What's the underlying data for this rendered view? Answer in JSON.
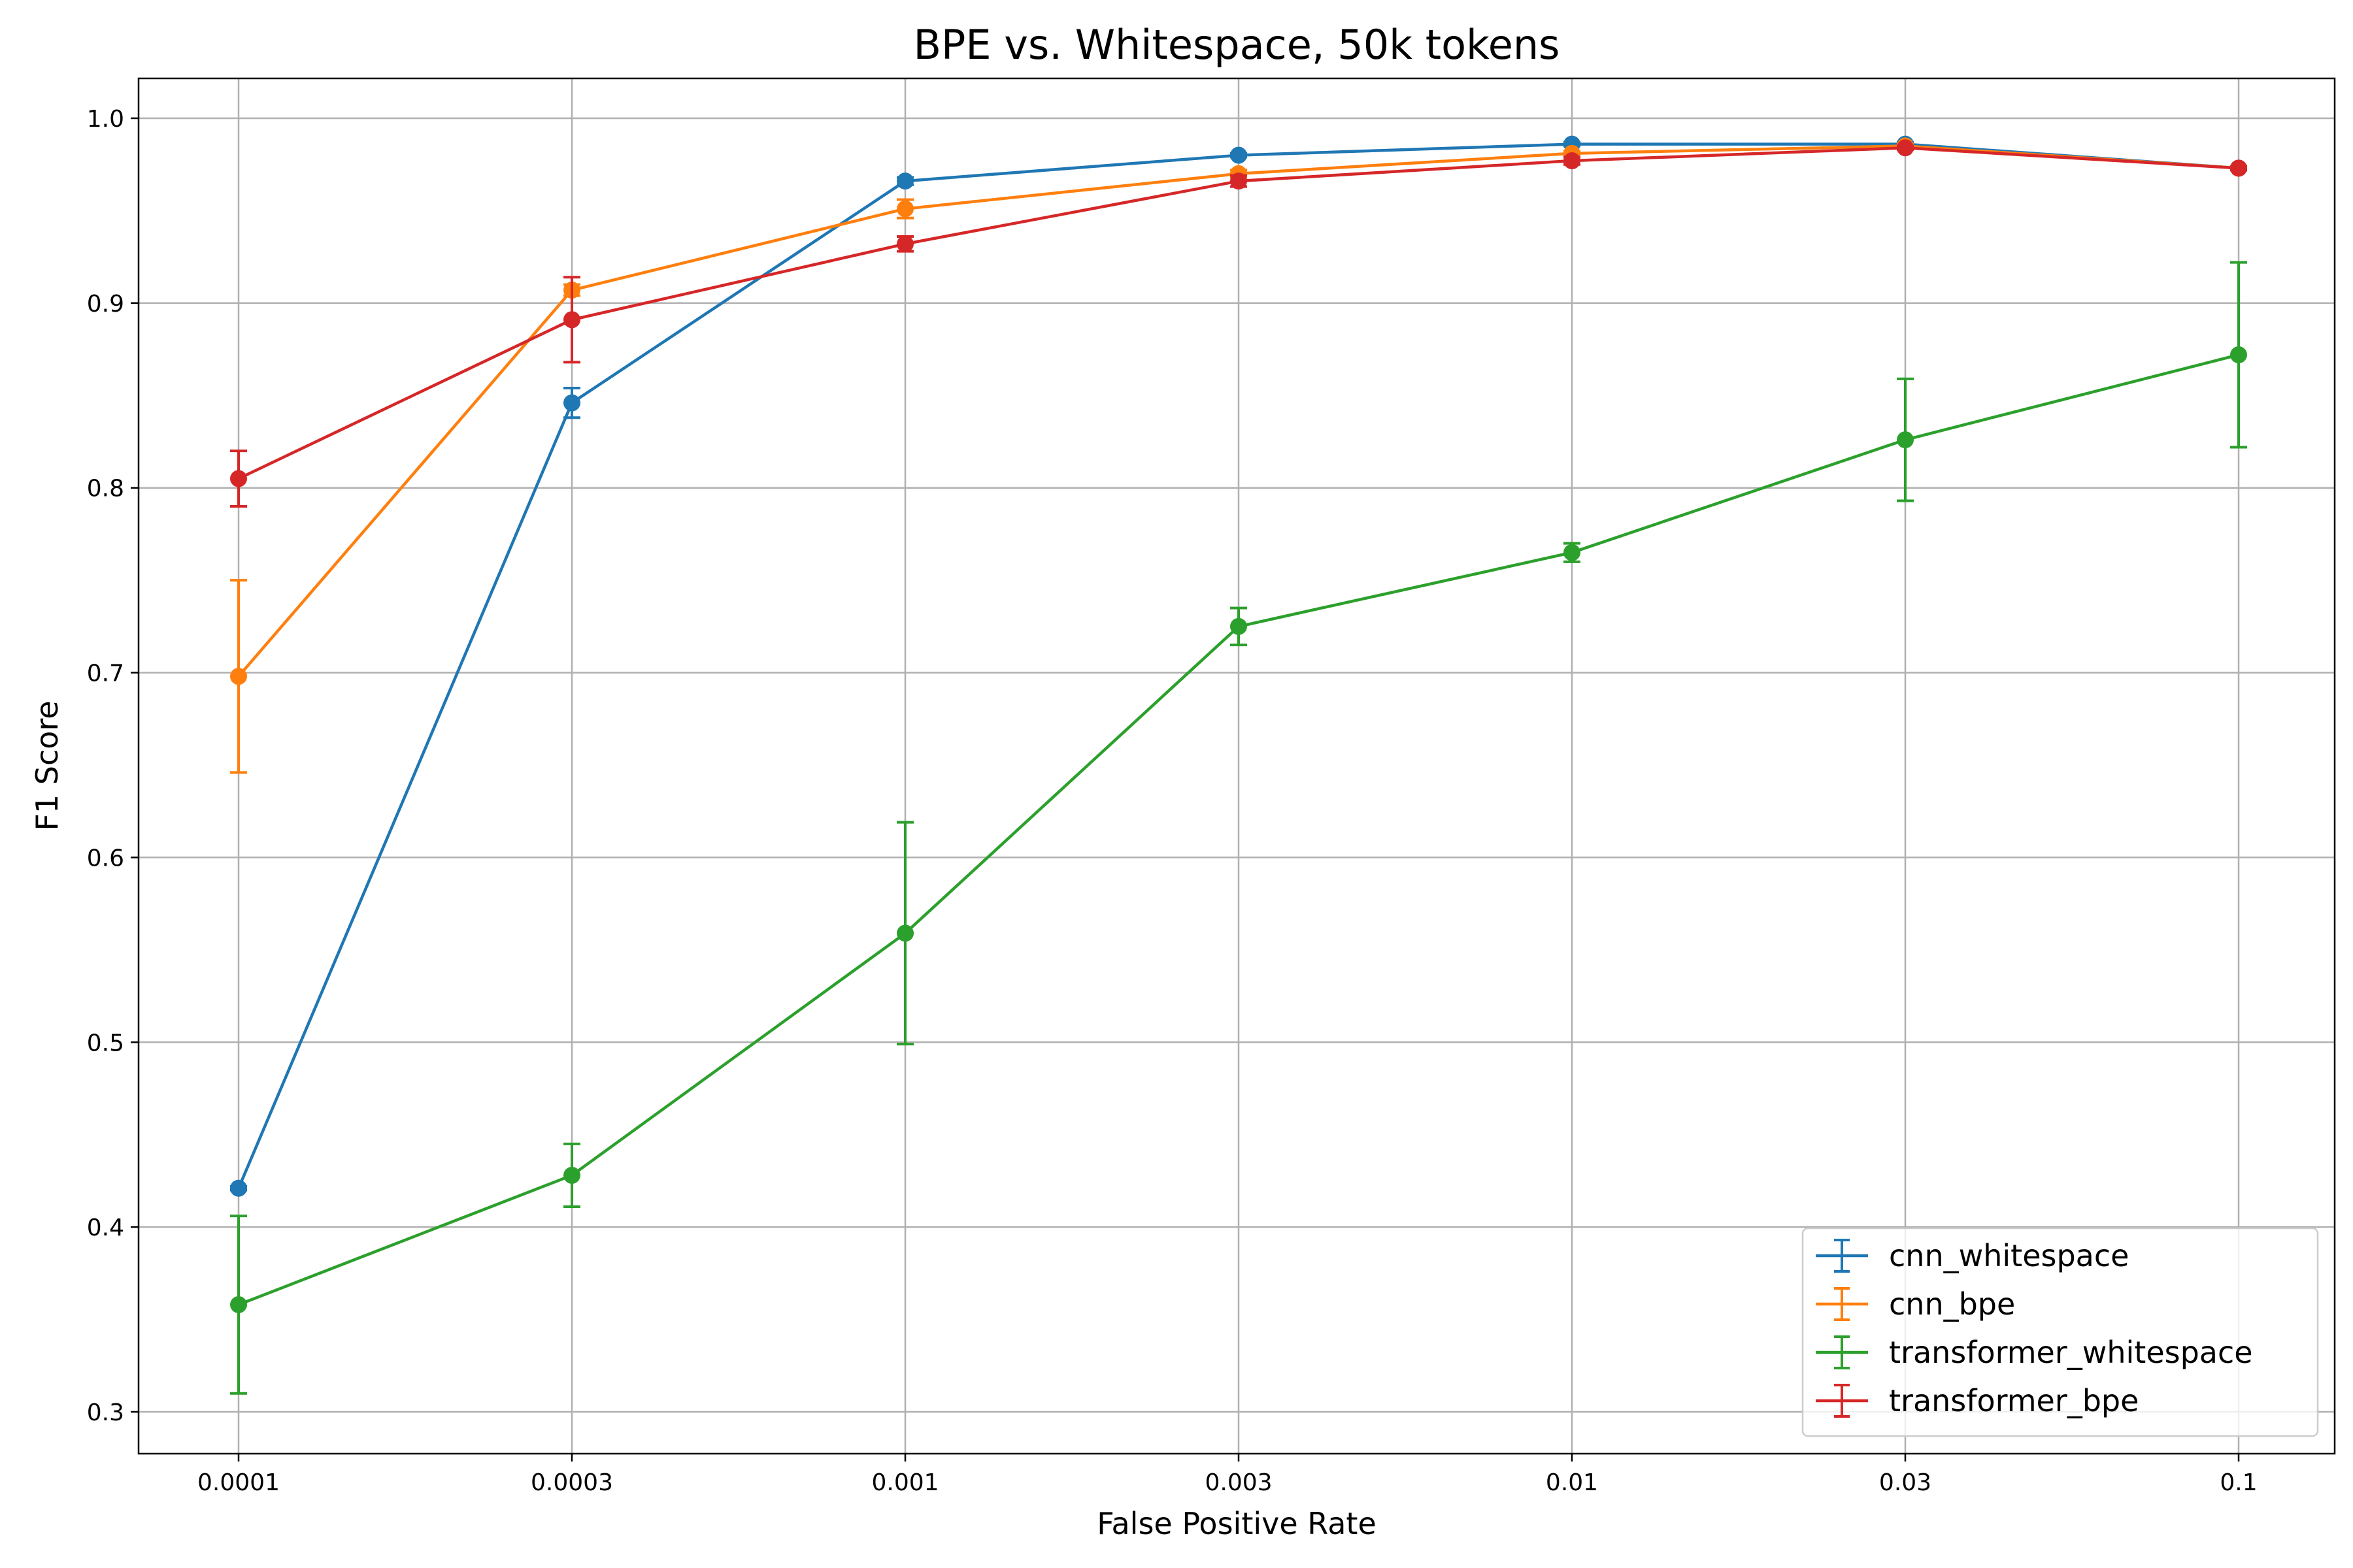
{
  "chart_data": {
    "type": "line",
    "title": "BPE vs. Whitespace, 50k tokens",
    "xlabel": "False Positive Rate",
    "ylabel": "F1 Score",
    "x_scale": "categorical",
    "categories": [
      "0.0001",
      "0.0003",
      "0.001",
      "0.003",
      "0.01",
      "0.03",
      "0.1"
    ],
    "yticks": [
      "0.3",
      "0.4",
      "0.5",
      "0.6",
      "0.7",
      "0.8",
      "0.9",
      "1.0"
    ],
    "ylim": [
      0.278,
      1.021
    ],
    "grid": true,
    "legend_position": "lower-right",
    "error_bars": true,
    "series": [
      {
        "name": "cnn_whitespace",
        "color": "#1f77b4",
        "values": [
          0.421,
          0.846,
          0.966,
          0.98,
          0.986,
          0.986,
          0.973
        ],
        "errors": [
          0.001,
          0.008,
          0.002,
          0.001,
          0.001,
          0.001,
          0.001
        ]
      },
      {
        "name": "cnn_bpe",
        "color": "#ff7f0e",
        "values": [
          0.698,
          0.907,
          0.951,
          0.97,
          0.981,
          0.985,
          0.973
        ],
        "errors": [
          0.052,
          0.003,
          0.005,
          0.002,
          0.001,
          0.001,
          0.001
        ]
      },
      {
        "name": "transformer_whitespace",
        "color": "#2ca02c",
        "values": [
          0.358,
          0.428,
          0.559,
          0.725,
          0.765,
          0.826,
          0.872
        ],
        "errors": [
          0.048,
          0.017,
          0.06,
          0.01,
          0.005,
          0.033,
          0.05
        ]
      },
      {
        "name": "transformer_bpe",
        "color": "#d62728",
        "values": [
          0.805,
          0.891,
          0.932,
          0.966,
          0.977,
          0.984,
          0.973
        ],
        "errors": [
          0.015,
          0.023,
          0.004,
          0.003,
          0.002,
          0.001,
          0.001
        ]
      }
    ]
  }
}
